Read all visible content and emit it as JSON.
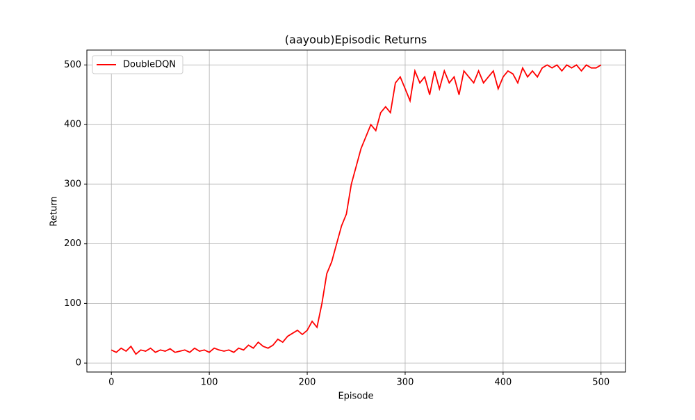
{
  "chart_data": {
    "type": "line",
    "title": "(aayoub)Episodic Returns",
    "x_label": "Episode",
    "y_label": "Return",
    "x": [
      0,
      5,
      10,
      15,
      20,
      25,
      30,
      35,
      40,
      45,
      50,
      55,
      60,
      65,
      70,
      75,
      80,
      85,
      90,
      95,
      100,
      105,
      110,
      115,
      120,
      125,
      130,
      135,
      140,
      145,
      150,
      155,
      160,
      165,
      170,
      175,
      180,
      185,
      190,
      195,
      200,
      205,
      210,
      215,
      220,
      225,
      230,
      235,
      240,
      245,
      250,
      255,
      260,
      265,
      270,
      275,
      280,
      285,
      290,
      295,
      300,
      305,
      310,
      315,
      320,
      325,
      330,
      335,
      340,
      345,
      350,
      355,
      360,
      365,
      370,
      375,
      380,
      385,
      390,
      395,
      400,
      405,
      410,
      415,
      420,
      425,
      430,
      435,
      440,
      445,
      450,
      455,
      460,
      465,
      470,
      475,
      480,
      485,
      490,
      495,
      500
    ],
    "series": [
      {
        "name": "DoubleDQN",
        "color": "#ff0000",
        "values": [
          22,
          18,
          25,
          20,
          28,
          15,
          22,
          20,
          25,
          18,
          22,
          20,
          24,
          18,
          20,
          22,
          18,
          25,
          20,
          22,
          18,
          25,
          22,
          20,
          22,
          18,
          25,
          22,
          30,
          25,
          35,
          28,
          25,
          30,
          40,
          35,
          45,
          50,
          55,
          48,
          55,
          70,
          60,
          100,
          150,
          170,
          200,
          230,
          250,
          300,
          330,
          360,
          380,
          400,
          390,
          420,
          430,
          420,
          470,
          480,
          460,
          440,
          490,
          470,
          480,
          450,
          490,
          460,
          490,
          470,
          480,
          450,
          490,
          480,
          470,
          490,
          470,
          480,
          490,
          460,
          480,
          490,
          485,
          470,
          495,
          480,
          490,
          480,
          495,
          500,
          495,
          500,
          490,
          500,
          495,
          500,
          490,
          500,
          495,
          495,
          500
        ]
      }
    ],
    "xlim": [
      -25,
      525
    ],
    "ylim": [
      -15,
      525
    ],
    "xticks": [
      0,
      100,
      200,
      300,
      400,
      500
    ],
    "yticks": [
      0,
      100,
      200,
      300,
      400,
      500
    ],
    "grid": true,
    "legend": "upper left"
  }
}
